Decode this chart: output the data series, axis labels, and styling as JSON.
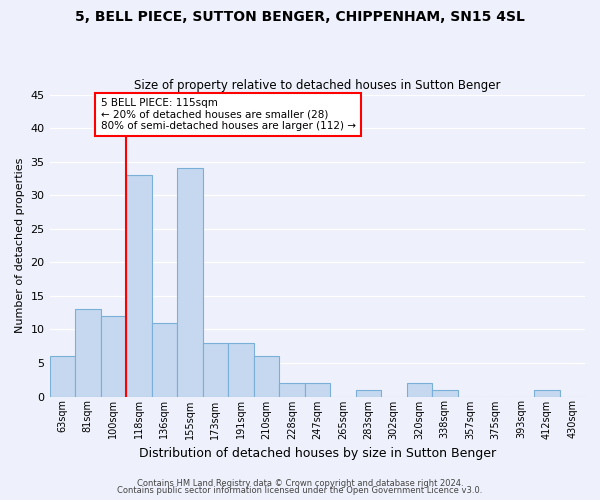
{
  "title": "5, BELL PIECE, SUTTON BENGER, CHIPPENHAM, SN15 4SL",
  "subtitle": "Size of property relative to detached houses in Sutton Benger",
  "xlabel": "Distribution of detached houses by size in Sutton Benger",
  "ylabel": "Number of detached properties",
  "bin_labels": [
    "63sqm",
    "81sqm",
    "100sqm",
    "118sqm",
    "136sqm",
    "155sqm",
    "173sqm",
    "191sqm",
    "210sqm",
    "228sqm",
    "247sqm",
    "265sqm",
    "283sqm",
    "302sqm",
    "320sqm",
    "338sqm",
    "357sqm",
    "375sqm",
    "393sqm",
    "412sqm",
    "430sqm"
  ],
  "bar_heights": [
    6,
    13,
    12,
    33,
    11,
    34,
    8,
    8,
    6,
    2,
    2,
    0,
    1,
    0,
    2,
    1,
    0,
    0,
    0,
    1,
    0
  ],
  "bar_color": "#c5d8f0",
  "bar_edge_color": "#7ab0d8",
  "vline_x_index": 3,
  "vline_color": "red",
  "annotation_title": "5 BELL PIECE: 115sqm",
  "annotation_line1": "← 20% of detached houses are smaller (28)",
  "annotation_line2": "80% of semi-detached houses are larger (112) →",
  "annotation_box_color": "white",
  "annotation_box_edge_color": "red",
  "ylim": [
    0,
    45
  ],
  "yticks": [
    0,
    5,
    10,
    15,
    20,
    25,
    30,
    35,
    40,
    45
  ],
  "bg_color": "#eef1fb",
  "grid_color": "white",
  "footer1": "Contains HM Land Registry data © Crown copyright and database right 2024.",
  "footer2": "Contains public sector information licensed under the Open Government Licence v3.0."
}
